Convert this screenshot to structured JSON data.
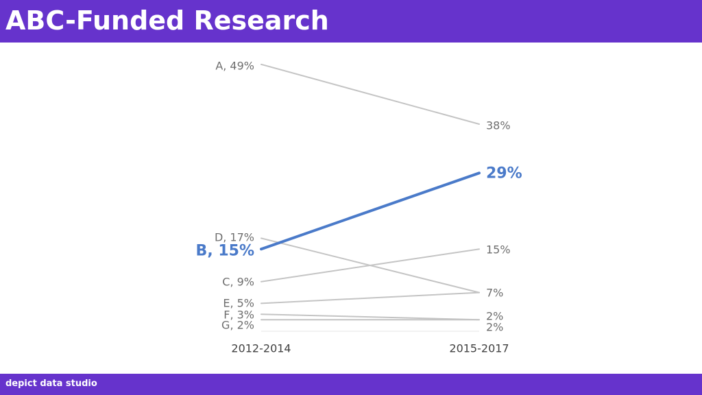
{
  "header": {
    "title": "ABC-Funded Research",
    "color": "#6633cc"
  },
  "footer": {
    "brand": "depict data studio"
  },
  "chart_data": {
    "type": "line",
    "title": "ABC-Funded Research",
    "categories": [
      "2012-2014",
      "2015-2017"
    ],
    "ylim": [
      0,
      50
    ],
    "grid": false,
    "legend": "none",
    "series": [
      {
        "name": "A",
        "values": [
          49,
          38
        ],
        "highlight": false,
        "color": "#c4c4c4",
        "start_label": "A, 49%",
        "end_label": "38%"
      },
      {
        "name": "B",
        "values": [
          15,
          29
        ],
        "highlight": true,
        "color": "#4a7ac9",
        "start_label": "B, 15%",
        "end_label": "29%"
      },
      {
        "name": "C",
        "values": [
          9,
          15
        ],
        "highlight": false,
        "color": "#c4c4c4",
        "start_label": "C, 9%",
        "end_label": "15%"
      },
      {
        "name": "D",
        "values": [
          17,
          7
        ],
        "highlight": false,
        "color": "#c4c4c4",
        "start_label": "D, 17%",
        "end_label": "7%"
      },
      {
        "name": "E",
        "values": [
          5,
          7
        ],
        "highlight": false,
        "color": "#c4c4c4",
        "start_label": "E, 5%",
        "end_label": ""
      },
      {
        "name": "F",
        "values": [
          3,
          2
        ],
        "highlight": false,
        "color": "#c4c4c4",
        "start_label": "F, 3%",
        "end_label": "2%"
      },
      {
        "name": "G",
        "values": [
          2,
          2
        ],
        "highlight": false,
        "color": "#c4c4c4",
        "start_label": "G, 2%",
        "end_label": "2%"
      }
    ]
  }
}
